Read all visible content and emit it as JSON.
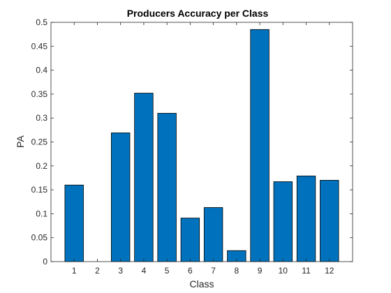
{
  "chart_data": {
    "type": "bar",
    "title": "Producers Accuracy per Class",
    "xlabel": "Class",
    "ylabel": "PA",
    "categories": [
      "1",
      "2",
      "3",
      "4",
      "5",
      "6",
      "7",
      "8",
      "9",
      "10",
      "11",
      "12"
    ],
    "values": [
      0.16,
      0.0,
      0.269,
      0.352,
      0.31,
      0.091,
      0.113,
      0.023,
      0.485,
      0.167,
      0.179,
      0.17
    ],
    "ylim": [
      0,
      0.5
    ],
    "yticks": [
      "0",
      "0.05",
      "0.1",
      "0.15",
      "0.2",
      "0.25",
      "0.3",
      "0.35",
      "0.4",
      "0.45",
      "0.5"
    ],
    "ytick_values": [
      0,
      0.05,
      0.1,
      0.15,
      0.2,
      0.25,
      0.3,
      0.35,
      0.4,
      0.45,
      0.5
    ],
    "grid": false,
    "bar_color": "#0072bd",
    "bar_edge_color": "#000000"
  }
}
